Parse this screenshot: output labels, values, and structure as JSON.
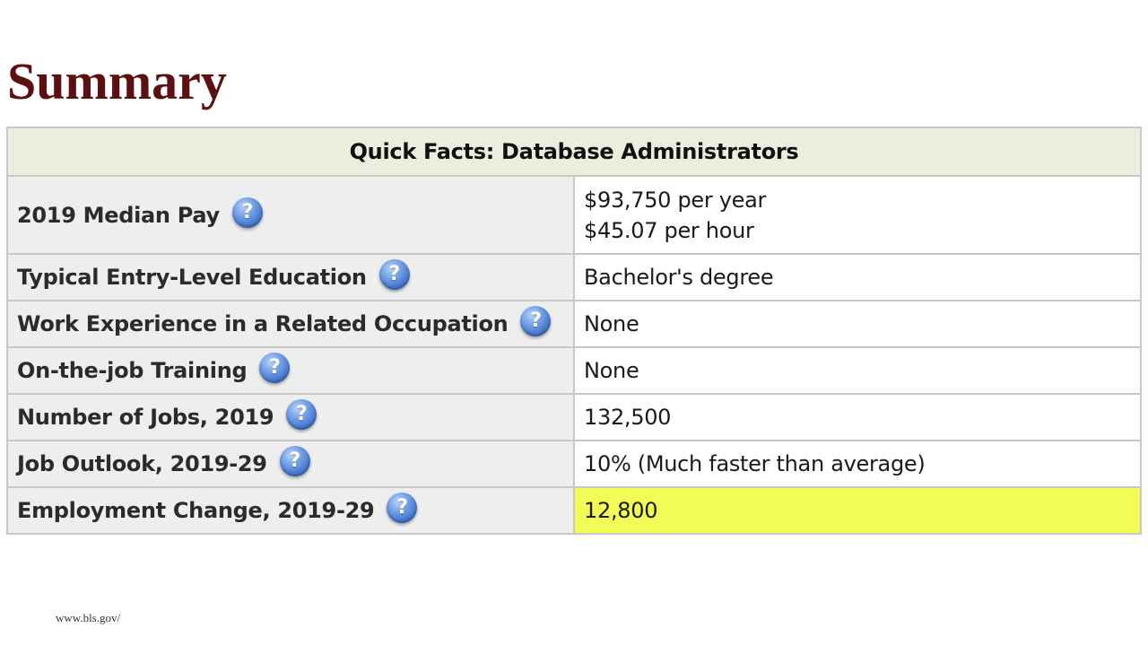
{
  "page": {
    "title": "Summary",
    "source": "www.bls.gov/"
  },
  "table": {
    "header": "Quick Facts: Database Administrators",
    "icon": "question-mark-help-icon",
    "icon_glyph": "?",
    "highlight_color": "#f2fc55",
    "rows": [
      {
        "label": "2019 Median Pay",
        "values": [
          "$93,750 per year",
          "$45.07 per hour"
        ]
      },
      {
        "label": "Typical Entry-Level Education",
        "values": [
          "Bachelor's degree"
        ]
      },
      {
        "label": "Work Experience in a Related Occupation",
        "values": [
          "None"
        ]
      },
      {
        "label": "On-the-job Training",
        "values": [
          "None"
        ]
      },
      {
        "label": "Number of Jobs, 2019",
        "values": [
          "132,500"
        ]
      },
      {
        "label": "Job Outlook, 2019-29",
        "values": [
          "10% (Much faster than average)"
        ]
      },
      {
        "label": "Employment Change, 2019-29",
        "values": [
          "12,800"
        ],
        "highlighted": true
      }
    ]
  }
}
